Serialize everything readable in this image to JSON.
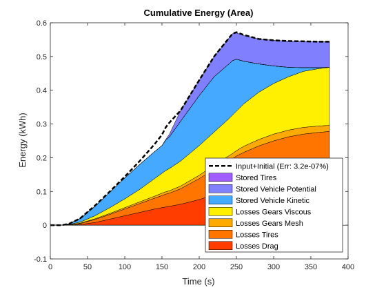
{
  "chart_data": {
    "type": "area",
    "title": "Cumulative Energy (Area)",
    "xlabel": "Time (s)",
    "ylabel": "Energy (kWh)",
    "xlim": [
      0,
      400
    ],
    "ylim": [
      -0.1,
      0.6
    ],
    "xticks": [
      0,
      50,
      100,
      150,
      200,
      250,
      300,
      350,
      400
    ],
    "yticks": [
      -0.1,
      0,
      0.1,
      0.2,
      0.3,
      0.4,
      0.5,
      0.6
    ],
    "x": [
      0,
      15,
      25,
      40,
      60,
      80,
      100,
      120,
      140,
      150,
      155,
      160,
      175,
      200,
      220,
      240,
      245,
      250,
      260,
      280,
      300,
      320,
      340,
      360,
      375
    ],
    "series": [
      {
        "name": "Losses Drag",
        "color": "#ff3d00",
        "cumulative": [
          0,
          0,
          0,
          0.002,
          0.008,
          0.018,
          0.028,
          0.038,
          0.048,
          0.052,
          0.054,
          0.056,
          0.062,
          0.076,
          0.09,
          0.104,
          0.107,
          0.11,
          0.116,
          0.128,
          0.138,
          0.146,
          0.152,
          0.156,
          0.158
        ]
      },
      {
        "name": "Losses Tires",
        "color": "#ff7500",
        "cumulative": [
          0,
          0,
          0.001,
          0.005,
          0.017,
          0.032,
          0.048,
          0.064,
          0.08,
          0.088,
          0.092,
          0.095,
          0.108,
          0.138,
          0.166,
          0.192,
          0.198,
          0.205,
          0.216,
          0.235,
          0.25,
          0.262,
          0.27,
          0.275,
          0.278
        ]
      },
      {
        "name": "Losses Gears Mesh",
        "color": "#ffaa00",
        "cumulative": [
          0,
          0,
          0.001,
          0.006,
          0.019,
          0.035,
          0.052,
          0.069,
          0.086,
          0.095,
          0.099,
          0.102,
          0.116,
          0.148,
          0.178,
          0.206,
          0.213,
          0.221,
          0.234,
          0.254,
          0.27,
          0.282,
          0.29,
          0.294,
          0.296
        ]
      },
      {
        "name": "Losses Gears Viscous",
        "color": "#ffef00",
        "cumulative": [
          0,
          0,
          0.002,
          0.009,
          0.028,
          0.052,
          0.078,
          0.106,
          0.138,
          0.154,
          0.162,
          0.168,
          0.19,
          0.236,
          0.276,
          0.316,
          0.327,
          0.338,
          0.36,
          0.394,
          0.42,
          0.44,
          0.456,
          0.464,
          0.468
        ]
      },
      {
        "name": "Stored Vehicle Kinetic",
        "color": "#45aaff",
        "cumulative": [
          0,
          0,
          0.004,
          0.02,
          0.056,
          0.098,
          0.14,
          0.18,
          0.218,
          0.236,
          0.252,
          0.262,
          0.308,
          0.384,
          0.44,
          0.478,
          0.488,
          0.492,
          0.486,
          0.478,
          0.472,
          0.468,
          0.467,
          0.467,
          0.468
        ]
      },
      {
        "name": "Stored Vehicle Potential",
        "color": "#8080ff",
        "cumulative": [
          0,
          0,
          0.004,
          0.02,
          0.056,
          0.098,
          0.14,
          0.18,
          0.218,
          0.236,
          0.252,
          0.262,
          0.308,
          0.384,
          0.44,
          0.478,
          0.488,
          0.492,
          0.486,
          0.478,
          0.472,
          0.468,
          0.467,
          0.467,
          0.468
        ]
      },
      {
        "name": "Stored Tires",
        "color": "#a05cff",
        "cumulative": [
          0,
          0,
          0.004,
          0.02,
          0.056,
          0.098,
          0.14,
          0.18,
          0.218,
          0.236,
          0.252,
          0.262,
          0.308,
          0.384,
          0.44,
          0.478,
          0.488,
          0.492,
          0.486,
          0.478,
          0.472,
          0.468,
          0.467,
          0.467,
          0.468
        ]
      }
    ],
    "potential_band_top": [
      0,
      0,
      0.004,
      0.02,
      0.056,
      0.098,
      0.14,
      0.18,
      0.218,
      0.236,
      0.254,
      0.27,
      0.34,
      0.43,
      0.5,
      0.555,
      0.568,
      0.57,
      0.562,
      0.552,
      0.548,
      0.546,
      0.545,
      0.544,
      0.544
    ],
    "total_line": {
      "name": "Input+Initial (Err: 3.2e-07%)",
      "color": "#000000",
      "values": [
        0,
        0,
        0.004,
        0.02,
        0.058,
        0.1,
        0.144,
        0.19,
        0.24,
        0.268,
        0.29,
        0.304,
        0.34,
        0.43,
        0.5,
        0.555,
        0.568,
        0.572,
        0.564,
        0.552,
        0.548,
        0.546,
        0.545,
        0.544,
        0.544
      ]
    },
    "legend_order": [
      "Input+Initial (Err: 3.2e-07%)",
      "Stored Tires",
      "Stored Vehicle Potential",
      "Stored Vehicle Kinetic",
      "Losses Gears Viscous",
      "Losses Gears Mesh",
      "Losses Tires",
      "Losses Drag"
    ],
    "legend_position": "bottom-right",
    "grid": false
  }
}
